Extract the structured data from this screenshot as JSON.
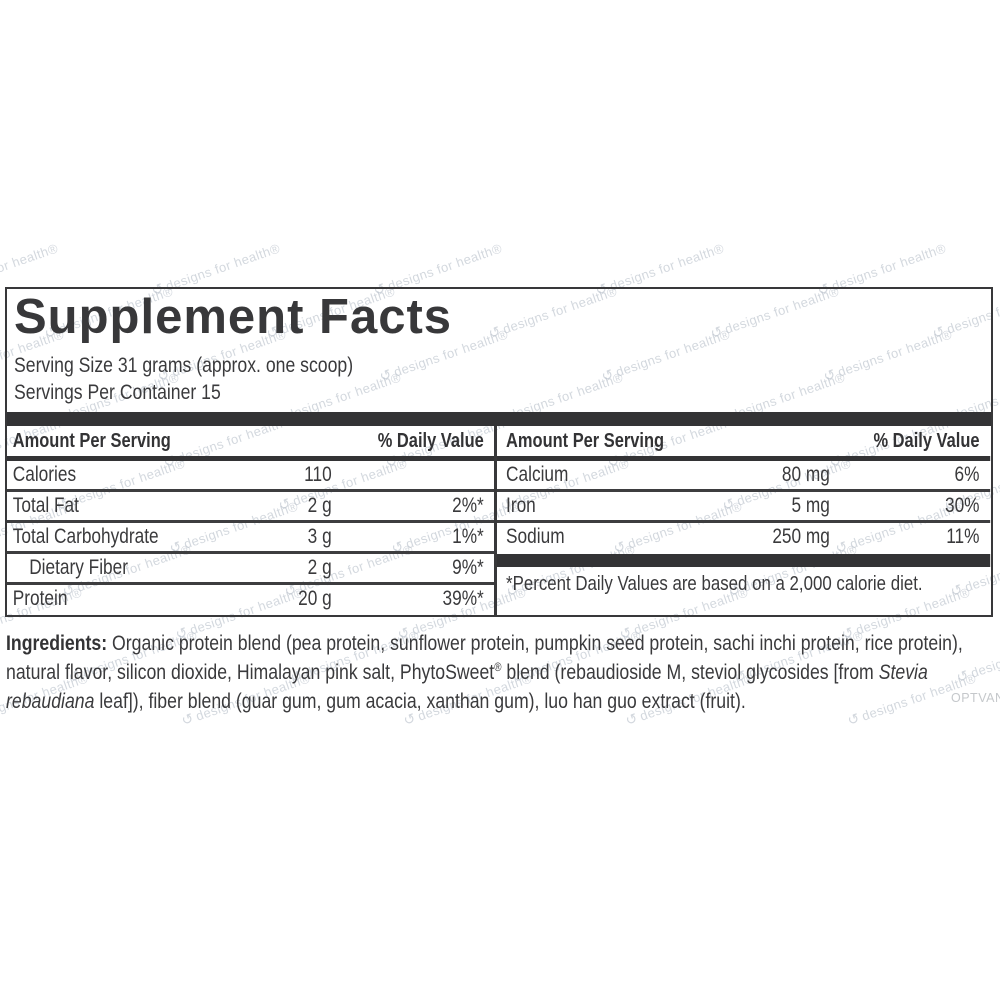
{
  "title": "Supplement Facts",
  "serving": {
    "size_line": "Serving Size 31 grams (approx. one scoop)",
    "servings_line": "Servings Per Container 15"
  },
  "columns": {
    "left": {
      "header": {
        "amount": "Amount Per Serving",
        "dv": "% Daily Value"
      },
      "rows": [
        {
          "label": "Calories",
          "amount": "110",
          "dv": ""
        },
        {
          "label": "Total Fat",
          "amount": "2 g",
          "dv": "2%*"
        },
        {
          "label": "Total Carbohydrate",
          "amount": "3 g",
          "dv": "1%*"
        },
        {
          "label": "Dietary Fiber",
          "amount": "2 g",
          "dv": "9%*"
        },
        {
          "label": "Protein",
          "amount": "20 g",
          "dv": "39%*"
        }
      ]
    },
    "right": {
      "header": {
        "amount": "Amount Per Serving",
        "dv": "% Daily Value"
      },
      "rows": [
        {
          "label": "Calcium",
          "amount": "80 mg",
          "dv": "6%"
        },
        {
          "label": "Iron",
          "amount": "5 mg",
          "dv": "30%"
        },
        {
          "label": "Sodium",
          "amount": "250 mg",
          "dv": "11%"
        }
      ],
      "footnote": "*Percent Daily Values are based on a 2,000 calorie diet."
    }
  },
  "ingredients": {
    "label": "Ingredients:",
    "seg1": " Organic protein blend (pea protein, sunflower protein, pumpkin seed protein, sachi inchi protein, rice protein), natural flavor, silicon dioxide, Himalayan pink salt, PhytoSweet",
    "reg": "®",
    "seg2": " blend (rebaudioside M, steviol glycosides [from ",
    "species": "Stevia rebaudiana",
    "seg3": " leaf]), fiber blend (guar gum, gum acacia, xanthan gum), luo han guo extract (fruit)."
  },
  "watermark": {
    "logo_glyph": "↺",
    "text": "designs for health®",
    "code": "OPTVAN"
  },
  "colors": {
    "ink": "#3a3a3c",
    "bar": "#333335",
    "watermark": "#aeb8c2"
  }
}
